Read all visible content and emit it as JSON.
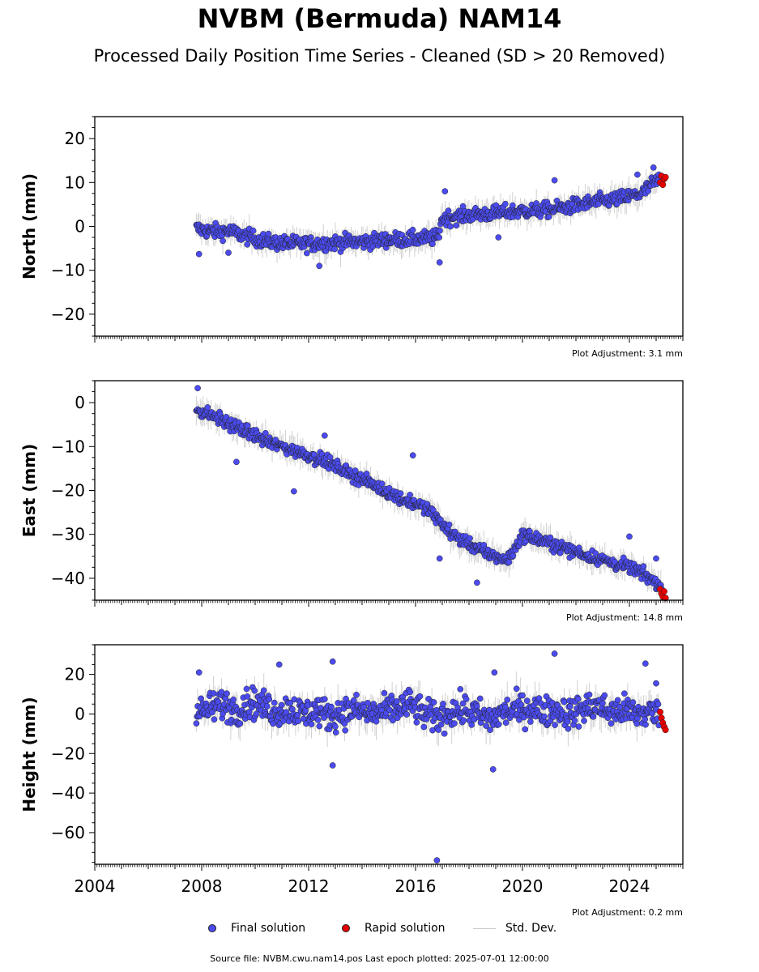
{
  "header": {
    "title": "NVBM (Bermuda) NAM14",
    "subtitle": "Processed Daily Position Time Series - Cleaned (SD > 20 Removed)"
  },
  "legend": {
    "final_label": "Final solution",
    "rapid_label": "Rapid solution",
    "sd_label": "Std. Dev.",
    "final_color": "#4b4bf0",
    "rapid_color": "#e60000",
    "sd_color": "#c8c8c8"
  },
  "footer": {
    "source": "Source file: NVBM.cwu.nam14.pos  Last epoch plotted: 2025-07-01 12:00:00"
  },
  "chart_data": [
    {
      "type": "scatter",
      "component": "north",
      "ylabel": "North (mm)",
      "ylim": [
        -25,
        25
      ],
      "yticks": [
        -20,
        -10,
        0,
        10,
        20
      ],
      "xlim": [
        2004.0,
        2026.0
      ],
      "xticks": [
        2008,
        2012,
        2016,
        2020,
        2024
      ],
      "x_tick_labels_visible": false,
      "adjustment": "Plot Adjustment: 3.1 mm",
      "series": [
        {
          "role": "final",
          "x": [
            2007.8,
            2008.2,
            2008.6,
            2009.0,
            2009.5,
            2010.0,
            2010.5,
            2011.0,
            2011.5,
            2012.0,
            2012.5,
            2013.0,
            2013.5,
            2014.0,
            2014.5,
            2015.0,
            2015.5,
            2016.0,
            2016.5,
            2016.85,
            2016.95,
            2017.2,
            2017.6,
            2018.0,
            2018.5,
            2019.0,
            2019.5,
            2020.0,
            2020.5,
            2021.0,
            2021.5,
            2022.0,
            2022.5,
            2023.0,
            2023.5,
            2024.0,
            2024.5,
            2024.8,
            2025.1
          ],
          "y": [
            -0.5,
            -1.0,
            -1.2,
            -1.0,
            -2.0,
            -2.8,
            -3.5,
            -3.8,
            -3.9,
            -4.0,
            -3.8,
            -3.7,
            -3.5,
            -3.5,
            -3.3,
            -3.0,
            -3.0,
            -2.8,
            -2.7,
            -2.5,
            1.5,
            2.0,
            2.3,
            2.6,
            2.8,
            3.0,
            3.3,
            3.5,
            3.6,
            3.8,
            4.2,
            4.8,
            5.3,
            5.8,
            6.2,
            6.8,
            7.6,
            9.5,
            10.5
          ]
        },
        {
          "role": "rapid",
          "x": [
            2025.15,
            2025.2,
            2025.25,
            2025.3,
            2025.35
          ],
          "y": [
            10.0,
            11.5,
            9.5,
            10.8,
            11.2
          ]
        },
        {
          "role": "outlier",
          "x": [
            2007.9,
            2009.0,
            2012.4,
            2016.9,
            2017.1,
            2021.2,
            2024.3,
            2024.9,
            2019.1
          ],
          "y": [
            -6.3,
            -6.0,
            -9.0,
            -8.2,
            8.0,
            10.5,
            11.8,
            13.4,
            -2.5
          ]
        }
      ]
    },
    {
      "type": "scatter",
      "component": "east",
      "ylabel": "East (mm)",
      "ylim": [
        -45,
        5
      ],
      "yticks": [
        -40,
        -30,
        -20,
        -10,
        0
      ],
      "xlim": [
        2004.0,
        2026.0
      ],
      "xticks": [
        2008,
        2012,
        2016,
        2020,
        2024
      ],
      "x_tick_labels_visible": false,
      "adjustment": "Plot Adjustment: 14.8 mm",
      "series": [
        {
          "role": "final",
          "x": [
            2007.8,
            2008.2,
            2008.6,
            2009.0,
            2009.5,
            2010.0,
            2010.5,
            2011.0,
            2011.5,
            2012.0,
            2012.5,
            2013.0,
            2013.5,
            2014.0,
            2014.5,
            2015.0,
            2015.5,
            2016.0,
            2016.5,
            2016.9,
            2017.2,
            2017.6,
            2018.0,
            2018.5,
            2019.0,
            2019.4,
            2019.7,
            2020.0,
            2020.5,
            2021.0,
            2021.5,
            2022.0,
            2022.5,
            2023.0,
            2023.5,
            2024.0,
            2024.5,
            2025.0,
            2025.2
          ],
          "y": [
            -1.5,
            -2.5,
            -3.5,
            -4.8,
            -6.2,
            -7.5,
            -9.0,
            -10.0,
            -11.0,
            -12.0,
            -13.0,
            -14.5,
            -16.0,
            -17.5,
            -19.0,
            -20.5,
            -22.0,
            -23.0,
            -24.5,
            -27.0,
            -29.0,
            -31.0,
            -32.0,
            -34.0,
            -35.0,
            -36.0,
            -33.5,
            -30.0,
            -31.0,
            -32.0,
            -33.0,
            -34.0,
            -35.0,
            -35.8,
            -36.8,
            -37.5,
            -39.0,
            -41.0,
            -42.0
          ]
        },
        {
          "role": "rapid",
          "x": [
            2025.15,
            2025.2,
            2025.25,
            2025.3,
            2025.35
          ],
          "y": [
            -42.5,
            -43.5,
            -44.2,
            -43.0,
            -44.5
          ]
        },
        {
          "role": "outlier",
          "x": [
            2007.85,
            2009.3,
            2011.45,
            2012.6,
            2015.9,
            2016.9,
            2018.3,
            2024.0,
            2025.0
          ],
          "y": [
            3.3,
            -13.5,
            -20.2,
            -7.5,
            -12.0,
            -35.5,
            -41.0,
            -30.5,
            -35.5
          ]
        }
      ]
    },
    {
      "type": "scatter",
      "component": "height",
      "ylabel": "Height (mm)",
      "ylim": [
        -76,
        35
      ],
      "yticks": [
        -60,
        -40,
        -20,
        0,
        20
      ],
      "xlim": [
        2004.0,
        2026.0
      ],
      "xticks": [
        2004,
        2008,
        2012,
        2016,
        2020,
        2024
      ],
      "x_tick_labels_visible": true,
      "adjustment": "Plot Adjustment: 0.2 mm",
      "series": [
        {
          "role": "final",
          "x": [
            2007.8,
            2008.3,
            2008.8,
            2009.3,
            2009.8,
            2010.3,
            2010.8,
            2011.3,
            2011.8,
            2012.3,
            2012.8,
            2013.3,
            2013.8,
            2014.3,
            2014.8,
            2015.3,
            2015.8,
            2016.3,
            2016.8,
            2017.3,
            2017.8,
            2018.3,
            2018.8,
            2019.3,
            2019.8,
            2020.3,
            2020.8,
            2021.3,
            2021.8,
            2022.3,
            2022.8,
            2023.3,
            2023.8,
            2024.3,
            2024.8,
            2025.1
          ],
          "y": [
            0,
            3,
            5,
            2,
            6,
            4,
            1,
            3,
            0,
            2,
            -1,
            1,
            2,
            0,
            1,
            3,
            5,
            0,
            -2,
            1,
            2,
            0,
            -3,
            1,
            2,
            3,
            1,
            2,
            0,
            3,
            4,
            1,
            2,
            0,
            1,
            0
          ]
        },
        {
          "role": "rapid",
          "x": [
            2025.15,
            2025.2,
            2025.25,
            2025.3,
            2025.35
          ],
          "y": [
            1.0,
            -2.0,
            -4.5,
            -6.5,
            -8.0
          ]
        },
        {
          "role": "outlier",
          "x": [
            2007.9,
            2010.9,
            2012.9,
            2012.9,
            2016.8,
            2018.95,
            2018.9,
            2021.2,
            2024.6,
            2025.0
          ],
          "y": [
            21,
            25,
            26.5,
            -26,
            -74,
            21,
            -28,
            30.5,
            25.5,
            15.5
          ]
        }
      ]
    }
  ]
}
